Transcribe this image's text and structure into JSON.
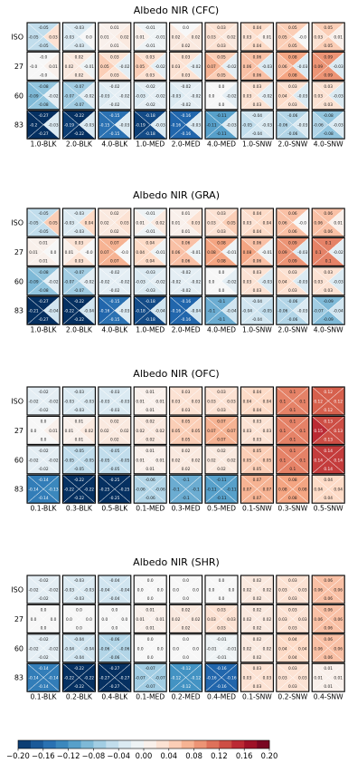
{
  "chart_data": [
    {
      "type": "heatmap",
      "title": "Albedo NIR (CFC)",
      "rows": [
        "ISO",
        "27",
        "60",
        "83"
      ],
      "columns": [
        "1.0-BLK",
        "2.0-BLK",
        "4.0-BLK",
        "1.0-MED",
        "2.0-MED",
        "4.0-MED",
        "1.0-SNW",
        "2.0-SNW",
        "4.0-SNW"
      ],
      "cells": [
        [
          [
            -0.05,
            -0.05,
            0.03,
            -0.05
          ],
          [
            -0.03,
            -0.03,
            0.0,
            -0.03
          ],
          [
            0.01,
            0.01,
            0.02,
            0.01
          ],
          [
            -0.01,
            0.01,
            -0.01,
            -0.01
          ],
          [
            0.0,
            0.02,
            0.02,
            0.02
          ],
          [
            0.03,
            0.03,
            0.02,
            0.03
          ],
          [
            0.04,
            0.03,
            0.01,
            0.04
          ],
          [
            0.05,
            0.05,
            -0.0,
            0.05
          ],
          [
            0.05,
            0.03,
            0.01,
            0.05
          ]
        ],
        [
          [
            -0.0,
            -0.0,
            0.01,
            -0.0
          ],
          [
            0.02,
            0.02,
            -0.01,
            0.02
          ],
          [
            0.03,
            0.05,
            -0.02,
            0.03
          ],
          [
            0.03,
            0.05,
            -0.02,
            0.03
          ],
          [
            0.03,
            0.03,
            -0.02,
            0.03
          ],
          [
            0.05,
            0.07,
            -0.02,
            0.05
          ],
          [
            0.06,
            0.06,
            -0.03,
            0.06
          ],
          [
            0.08,
            0.06,
            -0.03,
            0.08
          ],
          [
            0.09,
            0.09,
            -0.03,
            0.09
          ]
        ],
        [
          [
            -0.08,
            -0.09,
            -0.02,
            -0.08
          ],
          [
            -0.07,
            -0.07,
            -0.02,
            -0.07
          ],
          [
            -0.02,
            -0.03,
            -0.02,
            -0.02
          ],
          [
            -0.02,
            -0.03,
            -0.02,
            -0.02
          ],
          [
            -0.02,
            -0.03,
            -0.02,
            -0.02
          ],
          [
            0.0,
            0.0,
            -0.02,
            0.0
          ],
          [
            0.03,
            0.03,
            -0.02,
            0.03
          ],
          [
            0.03,
            0.04,
            -0.03,
            0.03
          ],
          [
            0.03,
            0.03,
            -0.03,
            0.03
          ]
        ],
        [
          [
            -0.27,
            -0.2,
            -0.03,
            -0.27
          ],
          [
            -0.22,
            -0.19,
            -0.03,
            -0.22
          ],
          [
            -0.15,
            -0.15,
            -0.03,
            -0.15
          ],
          [
            -0.18,
            -0.19,
            -0.03,
            -0.18
          ],
          [
            -0.16,
            -0.16,
            -0.03,
            -0.16
          ],
          [
            -0.11,
            -0.11,
            -0.03,
            -0.11
          ],
          [
            -0.04,
            -0.05,
            -0.03,
            -0.04
          ],
          [
            -0.06,
            -0.06,
            -0.03,
            -0.06
          ],
          [
            -0.08,
            -0.06,
            -0.03,
            -0.08
          ]
        ]
      ]
    },
    {
      "type": "heatmap",
      "title": "Albedo NIR (GRA)",
      "rows": [
        "ISO",
        "27",
        "60",
        "83"
      ],
      "columns": [
        "1.0-BLK",
        "2.0-BLK",
        "4.0-BLK",
        "1.0-MED",
        "2.0-MED",
        "4.0-MED",
        "1.0-SNW",
        "2.0-SNW",
        "4.0-SNW"
      ],
      "cells": [
        [
          [
            -0.05,
            -0.05,
            0.05,
            -0.05
          ],
          [
            -0.03,
            -0.03,
            0.04,
            -0.03
          ],
          [
            0.02,
            0.02,
            0.03,
            0.02
          ],
          [
            -0.01,
            0.01,
            0.02,
            -0.01
          ],
          [
            0.01,
            0.01,
            0.03,
            0.01
          ],
          [
            0.03,
            0.03,
            0.05,
            0.03
          ],
          [
            0.04,
            0.03,
            0.04,
            0.04
          ],
          [
            0.06,
            0.06,
            -0.0,
            0.06
          ],
          [
            0.06,
            0.06,
            0.01,
            0.06
          ]
        ],
        [
          [
            0.01,
            0.01,
            0.0,
            0.01
          ],
          [
            0.03,
            0.01,
            -0.0,
            0.03
          ],
          [
            0.07,
            0.07,
            -0.0,
            0.07
          ],
          [
            0.04,
            0.04,
            -0.01,
            0.04
          ],
          [
            0.06,
            0.06,
            -0.01,
            0.06
          ],
          [
            0.08,
            0.08,
            -0.01,
            0.08
          ],
          [
            0.06,
            0.08,
            -0.01,
            0.06
          ],
          [
            0.09,
            0.09,
            -0.03,
            0.09
          ],
          [
            0.1,
            0.1,
            -0.02,
            0.1
          ]
        ],
        [
          [
            -0.08,
            -0.09,
            -0.02,
            -0.08
          ],
          [
            -0.07,
            -0.07,
            -0.02,
            -0.07
          ],
          [
            -0.02,
            -0.02,
            -0.02,
            -0.02
          ],
          [
            -0.03,
            -0.03,
            -0.02,
            -0.03
          ],
          [
            -0.02,
            -0.02,
            -0.02,
            -0.02
          ],
          [
            0.0,
            0.0,
            -0.02,
            0.0
          ],
          [
            0.03,
            0.03,
            -0.03,
            0.03
          ],
          [
            0.03,
            0.04,
            -0.03,
            0.03
          ],
          [
            0.03,
            0.03,
            -0.03,
            0.03
          ]
        ],
        [
          [
            -0.27,
            -0.21,
            -0.04,
            -0.27
          ],
          [
            -0.22,
            -0.22,
            -0.04,
            -0.22
          ],
          [
            -0.15,
            -0.16,
            -0.03,
            -0.15
          ],
          [
            -0.18,
            -0.18,
            -0.04,
            -0.18
          ],
          [
            -0.16,
            -0.16,
            -0.04,
            -0.16
          ],
          [
            -0.1,
            -0.1,
            -0.04,
            -0.1
          ],
          [
            -0.04,
            -0.04,
            -0.05,
            -0.04
          ],
          [
            -0.06,
            -0.06,
            -0.03,
            -0.06
          ],
          [
            -0.09,
            -0.07,
            -0.04,
            -0.09
          ]
        ]
      ]
    },
    {
      "type": "heatmap",
      "title": "Albedo NIR (OFC)",
      "rows": [
        "ISO",
        "27",
        "60",
        "83"
      ],
      "columns": [
        "0.1-BLK",
        "0.3-BLK",
        "0.5-BLK",
        "0.1-MED",
        "0.3-MED",
        "0.5-MED",
        "0.1-SNW",
        "0.3-SNW",
        "0.5-SNW"
      ],
      "cells": [
        [
          [
            -0.02,
            -0.02,
            -0.02,
            -0.02
          ],
          [
            -0.03,
            -0.03,
            -0.03,
            -0.03
          ],
          [
            -0.03,
            -0.03,
            -0.03,
            -0.03
          ],
          [
            0.01,
            0.01,
            0.01,
            0.01
          ],
          [
            0.03,
            0.03,
            0.03,
            0.03
          ],
          [
            0.03,
            0.03,
            0.03,
            0.03
          ],
          [
            0.04,
            0.04,
            0.04,
            0.04
          ],
          [
            0.1,
            0.1,
            0.1,
            0.1
          ],
          [
            0.12,
            0.12,
            0.12,
            0.12
          ]
        ],
        [
          [
            0.0,
            0.0,
            0.01,
            0.0
          ],
          [
            0.01,
            0.01,
            0.02,
            0.01
          ],
          [
            0.02,
            0.02,
            0.02,
            0.02
          ],
          [
            0.02,
            0.02,
            0.02,
            0.02
          ],
          [
            0.05,
            0.05,
            0.05,
            0.05
          ],
          [
            0.07,
            0.07,
            0.07,
            0.07
          ],
          [
            0.03,
            0.03,
            0.03,
            0.03
          ],
          [
            0.1,
            0.1,
            0.1,
            0.1
          ],
          [
            0.13,
            0.15,
            0.13,
            0.13
          ]
        ],
        [
          [
            -0.02,
            -0.02,
            -0.02,
            -0.02
          ],
          [
            -0.05,
            -0.05,
            -0.05,
            -0.05
          ],
          [
            -0.05,
            -0.05,
            -0.05,
            -0.05
          ],
          [
            0.01,
            0.01,
            0.01,
            0.01
          ],
          [
            0.02,
            0.02,
            0.02,
            0.02
          ],
          [
            0.02,
            0.02,
            0.02,
            0.02
          ],
          [
            0.05,
            0.05,
            0.05,
            0.05
          ],
          [
            0.1,
            0.1,
            0.1,
            0.1
          ],
          [
            0.14,
            0.14,
            0.14,
            0.14
          ]
        ],
        [
          [
            -0.14,
            -0.14,
            -0.13,
            -0.14
          ],
          [
            -0.22,
            -0.22,
            -0.22,
            -0.22
          ],
          [
            -0.25,
            -0.25,
            -0.25,
            -0.25
          ],
          [
            -0.06,
            -0.06,
            -0.06,
            -0.06
          ],
          [
            -0.1,
            -0.1,
            -0.1,
            -0.1
          ],
          [
            -0.11,
            -0.11,
            -0.11,
            -0.11
          ],
          [
            0.07,
            0.07,
            0.07,
            0.07
          ],
          [
            0.08,
            0.08,
            0.08,
            0.08
          ],
          [
            0.04,
            0.04,
            0.04,
            0.04
          ]
        ]
      ]
    },
    {
      "type": "heatmap",
      "title": "Albedo NIR (SHR)",
      "rows": [
        "ISO",
        "27",
        "60",
        "83"
      ],
      "columns": [
        "0.1-BLK",
        "0.2-BLK",
        "0.4-BLK",
        "0.1-MED",
        "0.2-MED",
        "0.4-MED",
        "0.1-SNW",
        "0.2-SNW",
        "0.4-SNW"
      ],
      "cells": [
        [
          [
            -0.02,
            -0.02,
            -0.02,
            -0.02
          ],
          [
            -0.03,
            -0.03,
            -0.03,
            -0.03
          ],
          [
            -0.04,
            -0.04,
            -0.04,
            -0.04
          ],
          [
            0.0,
            0.0,
            0.0,
            0.0
          ],
          [
            0.0,
            0.0,
            0.0,
            0.0
          ],
          [
            0.0,
            0.0,
            0.0,
            0.0
          ],
          [
            0.02,
            0.02,
            0.02,
            0.02
          ],
          [
            0.03,
            0.03,
            0.03,
            0.03
          ],
          [
            0.06,
            0.06,
            0.06,
            0.06
          ]
        ],
        [
          [
            0.0,
            0.0,
            0.0,
            0.0
          ],
          [
            0.0,
            0.0,
            0.0,
            0.0
          ],
          [
            0.0,
            0.0,
            0.0,
            0.0
          ],
          [
            0.01,
            0.01,
            0.01,
            0.01
          ],
          [
            0.02,
            0.02,
            0.02,
            0.02
          ],
          [
            0.03,
            0.03,
            0.03,
            0.03
          ],
          [
            0.02,
            0.02,
            0.02,
            0.02
          ],
          [
            0.03,
            0.03,
            0.03,
            0.03
          ],
          [
            0.06,
            0.06,
            0.06,
            0.06
          ]
        ],
        [
          [
            -0.02,
            -0.02,
            -0.02,
            -0.02
          ],
          [
            -0.04,
            -0.04,
            -0.04,
            -0.04
          ],
          [
            -0.06,
            -0.06,
            -0.06,
            -0.06
          ],
          [
            0.0,
            0.0,
            0.0,
            0.0
          ],
          [
            0.0,
            0.0,
            0.0,
            0.0
          ],
          [
            -0.01,
            -0.01,
            -0.01,
            -0.01
          ],
          [
            0.02,
            0.02,
            0.02,
            0.02
          ],
          [
            0.04,
            0.04,
            0.04,
            0.04
          ],
          [
            0.06,
            0.06,
            0.06,
            0.06
          ]
        ],
        [
          [
            -0.14,
            -0.14,
            -0.14,
            -0.14
          ],
          [
            -0.22,
            -0.22,
            -0.22,
            -0.22
          ],
          [
            -0.27,
            -0.27,
            -0.27,
            -0.27
          ],
          [
            -0.07,
            -0.07,
            -0.07,
            -0.07
          ],
          [
            -0.12,
            -0.12,
            -0.12,
            -0.12
          ],
          [
            -0.16,
            -0.16,
            -0.16,
            -0.16
          ],
          [
            0.03,
            0.03,
            0.03,
            0.03
          ],
          [
            0.03,
            0.03,
            0.03,
            0.03
          ],
          [
            0.01,
            0.01,
            0.01,
            0.01
          ]
        ]
      ]
    }
  ],
  "colorbar": {
    "min": -0.2,
    "max": 0.2,
    "ticks": [
      "−0.20",
      "−0.16",
      "−0.12",
      "−0.08",
      "−0.04",
      "0.00",
      "0.04",
      "0.08",
      "0.12",
      "0.16",
      "0.20"
    ],
    "colors": [
      "#053061",
      "#2166ac",
      "#4393c3",
      "#92c5de",
      "#d1e5f0",
      "#f7f7f7",
      "#fddbc7",
      "#f4a582",
      "#d6604d",
      "#b2182b",
      "#67001f"
    ]
  }
}
